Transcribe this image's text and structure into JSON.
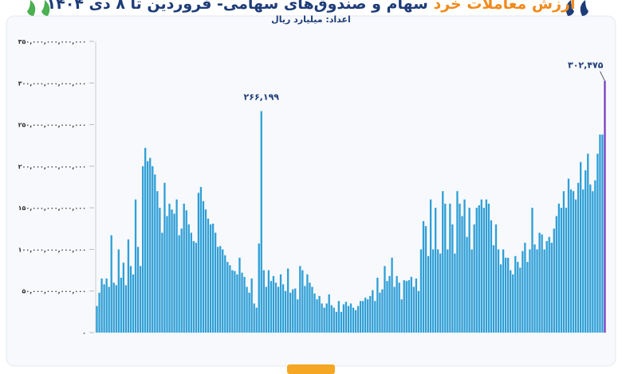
{
  "chart_data": {
    "type": "bar",
    "title_highlight": "ارزش معاملات خرد",
    "title": "سهام و صندوق‌های سهامی- فروردین تا ۸ دی ۱۴۰۴",
    "subtitle": "اعداد: میلیارد ریال",
    "color": "#2f9fd6",
    "last_bar_color": "#7a3fc2",
    "ylim": [
      0,
      350000000000000.0
    ],
    "yticks": [
      {
        "value": 0,
        "label": "۰"
      },
      {
        "value": 50000000000000.0,
        "label": "۵۰,۰۰۰,۰۰۰,۰۰۰,۰۰۰"
      },
      {
        "value": 100000000000000.0,
        "label": "۱۰۰,۰۰۰,۰۰۰,۰۰۰,۰۰۰"
      },
      {
        "value": 150000000000000.0,
        "label": "۱۵۰,۰۰۰,۰۰۰,۰۰۰,۰۰۰"
      },
      {
        "value": 200000000000000.0,
        "label": "۲۰۰,۰۰۰,۰۰۰,۰۰۰,۰۰۰"
      },
      {
        "value": 250000000000000.0,
        "label": "۲۵۰,۰۰۰,۰۰۰,۰۰۰,۰۰۰"
      },
      {
        "value": 300000000000000.0,
        "label": "۳۰۰,۰۰۰,۰۰۰,۰۰۰,۰۰۰"
      },
      {
        "value": 350000000000000.0,
        "label": "۳۵۰,۰۰۰,۰۰۰,۰۰۰,۰۰۰"
      }
    ],
    "values": [
      32000000000000.0,
      48000000000000.0,
      65000000000000.0,
      58000000000000.0,
      65000000000000.0,
      55000000000000.0,
      117000000000000.0,
      60000000000000.0,
      57000000000000.0,
      100000000000000.0,
      66000000000000.0,
      84000000000000.0,
      57000000000000.0,
      112000000000000.0,
      80000000000000.0,
      70000000000000.0,
      160000000000000.0,
      103000000000000.0,
      80000000000000.0,
      200000000000000.0,
      222000000000000.0,
      206000000000000.0,
      210000000000000.0,
      200000000000000.0,
      190000000000000.0,
      170000000000000.0,
      150000000000000.0,
      120000000000000.0,
      180000000000000.0,
      140000000000000.0,
      155000000000000.0,
      148000000000000.0,
      143000000000000.0,
      160000000000000.0,
      117000000000000.0,
      125000000000000.0,
      155000000000000.0,
      147000000000000.0,
      130000000000000.0,
      120000000000000.0,
      110000000000000.0,
      108000000000000.0,
      168000000000000.0,
      175000000000000.0,
      158000000000000.0,
      148000000000000.0,
      137000000000000.0,
      130000000000000.0,
      131000000000000.0,
      120000000000000.0,
      103000000000000.0,
      104000000000000.0,
      100000000000000.0,
      93000000000000.0,
      85000000000000.0,
      81000000000000.0,
      75000000000000.0,
      74000000000000.0,
      70000000000000.0,
      90000000000000.0,
      72000000000000.0,
      67000000000000.0,
      55000000000000.0,
      48000000000000.0,
      65000000000000.0,
      35000000000000.0,
      30000000000000.0,
      107000000000000.0,
      266199000000000.0,
      75000000000000.0,
      55000000000000.0,
      75000000000000.0,
      62000000000000.0,
      68000000000000.0,
      60000000000000.0,
      55000000000000.0,
      70000000000000.0,
      58000000000000.0,
      50000000000000.0,
      77000000000000.0,
      48000000000000.0,
      52000000000000.0,
      53000000000000.0,
      40000000000000.0,
      80000000000000.0,
      75000000000000.0,
      56000000000000.0,
      70000000000000.0,
      60000000000000.0,
      55000000000000.0,
      47000000000000.0,
      40000000000000.0,
      44000000000000.0,
      35000000000000.0,
      30000000000000.0,
      35000000000000.0,
      46000000000000.0,
      33000000000000.0,
      30000000000000.0,
      25000000000000.0,
      38000000000000.0,
      25000000000000.0,
      34000000000000.0,
      37000000000000.0,
      32000000000000.0,
      35000000000000.0,
      30000000000000.0,
      27000000000000.0,
      32000000000000.0,
      38000000000000.0,
      38000000000000.0,
      42000000000000.0,
      40000000000000.0,
      44000000000000.0,
      51000000000000.0,
      38000000000000.0,
      66000000000000.0,
      48000000000000.0,
      52000000000000.0,
      80000000000000.0,
      62000000000000.0,
      68000000000000.0,
      90000000000000.0,
      55000000000000.0,
      68000000000000.0,
      60000000000000.0,
      40000000000000.0,
      63000000000000.0,
      62000000000000.0,
      63000000000000.0,
      67000000000000.0,
      55000000000000.0,
      65000000000000.0,
      50000000000000.0,
      100000000000000.0,
      134000000000000.0,
      128000000000000.0,
      92000000000000.0,
      160000000000000.0,
      100000000000000.0,
      150000000000000.0,
      100000000000000.0,
      95000000000000.0,
      170000000000000.0,
      155000000000000.0,
      100000000000000.0,
      155000000000000.0,
      130000000000000.0,
      95000000000000.0,
      170000000000000.0,
      155000000000000.0,
      140000000000000.0,
      160000000000000.0,
      115000000000000.0,
      150000000000000.0,
      100000000000000.0,
      130000000000000.0,
      150000000000000.0,
      153000000000000.0,
      160000000000000.0,
      150000000000000.0,
      160000000000000.0,
      155000000000000.0,
      135000000000000.0,
      105000000000000.0,
      130000000000000.0,
      100000000000000.0,
      82000000000000.0,
      100000000000000.0,
      90000000000000.0,
      90000000000000.0,
      75000000000000.0,
      70000000000000.0,
      92000000000000.0,
      85000000000000.0,
      78000000000000.0,
      98000000000000.0,
      108000000000000.0,
      85000000000000.0,
      100000000000000.0,
      150000000000000.0,
      106000000000000.0,
      100000000000000.0,
      120000000000000.0,
      118000000000000.0,
      100000000000000.0,
      110000000000000.0,
      115000000000000.0,
      108000000000000.0,
      125000000000000.0,
      140000000000000.0,
      155000000000000.0,
      150000000000000.0,
      170000000000000.0,
      150000000000000.0,
      185000000000000.0,
      172000000000000.0,
      170000000000000.0,
      160000000000000.0,
      180000000000000.0,
      205000000000000.0,
      172000000000000.0,
      195000000000000.0,
      215000000000000.0,
      178000000000000.0,
      170000000000000.0,
      183000000000000.0,
      215000000000000.0,
      238000000000000.0,
      238000000000000.0,
      302475000000000.0
    ],
    "value_labels": [
      null,
      null,
      null,
      null,
      null,
      null,
      null,
      null,
      null,
      null,
      null,
      null,
      null,
      null,
      null,
      null,
      null,
      null,
      null,
      null,
      null,
      null,
      null,
      null,
      null,
      null,
      null,
      null,
      null,
      null,
      null,
      null,
      null,
      null,
      null,
      null,
      null,
      null,
      null,
      null,
      null,
      null,
      null,
      null,
      null,
      null,
      null,
      null,
      null,
      null,
      null,
      null,
      null,
      null,
      null,
      null,
      null,
      null,
      null,
      null,
      null,
      null,
      null,
      null,
      null,
      null,
      null,
      null,
      "۲۶۶,۱۹۹",
      null,
      null,
      null,
      null,
      null,
      null,
      null,
      null,
      null,
      null,
      null,
      null,
      null,
      null,
      null,
      null,
      null,
      null,
      null,
      null,
      null,
      null,
      null,
      null,
      null,
      null,
      null,
      null,
      null,
      null,
      null,
      null,
      null,
      null,
      null,
      null,
      null,
      null,
      null,
      null,
      null,
      null,
      null,
      null,
      null,
      null,
      null,
      null,
      null,
      null,
      null,
      null,
      null,
      null,
      null,
      null,
      null,
      null,
      null,
      null,
      null,
      null,
      null,
      null,
      null,
      null,
      null,
      null,
      null,
      null,
      null,
      null,
      null,
      null,
      null,
      null,
      null,
      null,
      null,
      null,
      null,
      null,
      null,
      null,
      null,
      null,
      null,
      null,
      null,
      null,
      null,
      null,
      null,
      null,
      null,
      null,
      null,
      null,
      null,
      null,
      null,
      null,
      null,
      null,
      null,
      null,
      null,
      null,
      null,
      null,
      null,
      null,
      null,
      null,
      null,
      null,
      null,
      null,
      null,
      null,
      null,
      null,
      null,
      null,
      null,
      null,
      null,
      null,
      null,
      null,
      null,
      null,
      null,
      null,
      null,
      null,
      null,
      null,
      null,
      null,
      null,
      "۳۰۲,۴۷۵"
    ]
  }
}
